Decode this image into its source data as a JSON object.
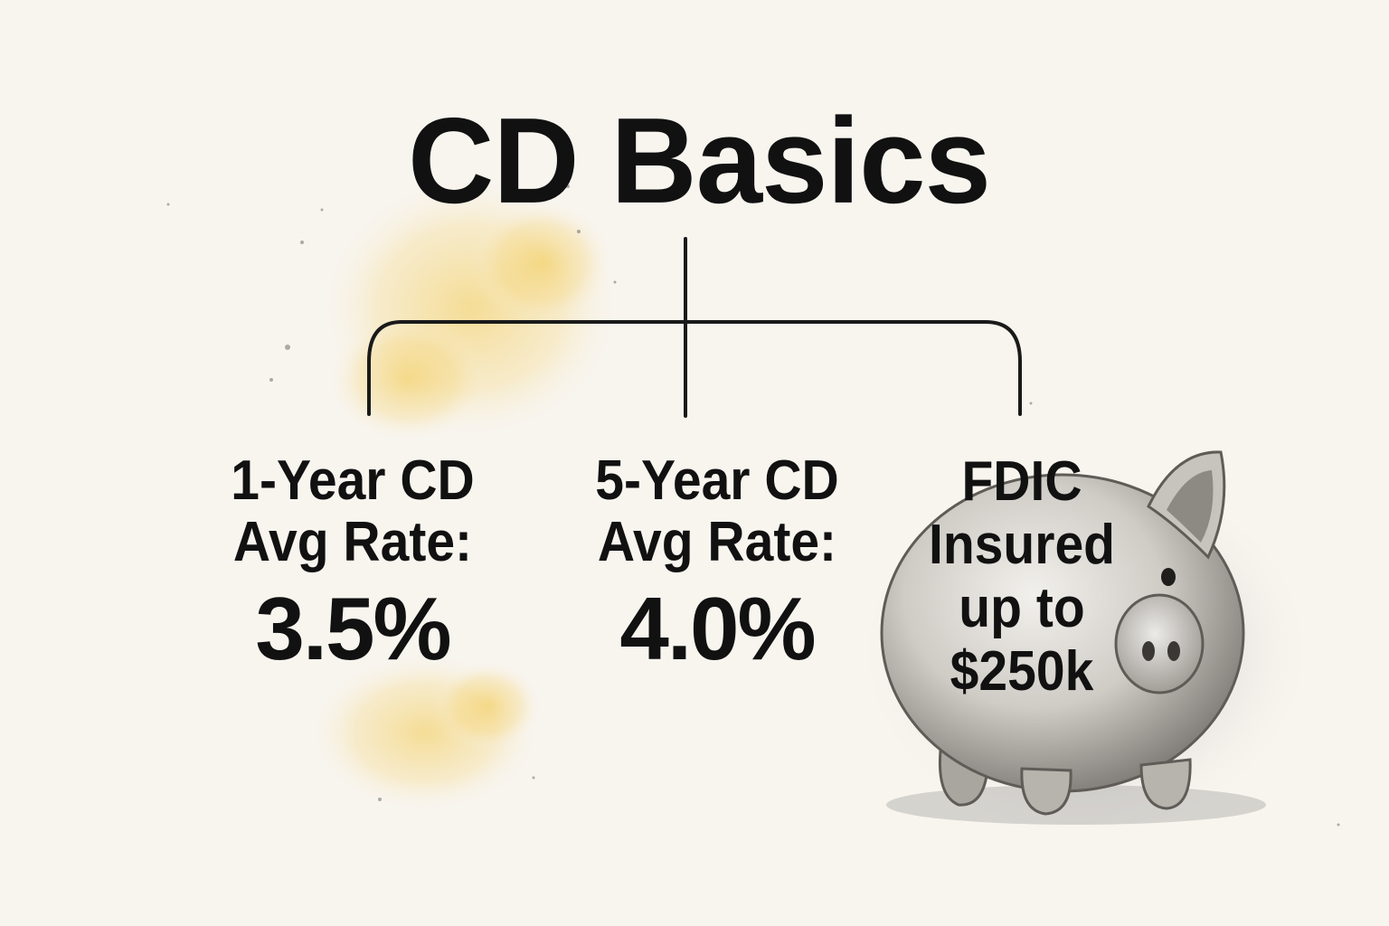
{
  "title": "CD Basics",
  "nodes": [
    {
      "label_lines": [
        "1-Year CD",
        "Avg Rate:"
      ],
      "value": "3.5%"
    },
    {
      "label_lines": [
        "5-Year CD",
        "Avg Rate:"
      ],
      "value": "4.0%"
    },
    {
      "label_lines": [
        "FDIC",
        "Insured",
        "up to",
        "$250k"
      ]
    }
  ],
  "colors": {
    "background": "#f8f5ef",
    "text": "#111111",
    "connector": "#1a1a1a",
    "watercolor_yellow": "#f2c94c",
    "pig_gray": "#9a9a9a"
  },
  "icons": [
    "piggy-bank-icon"
  ]
}
